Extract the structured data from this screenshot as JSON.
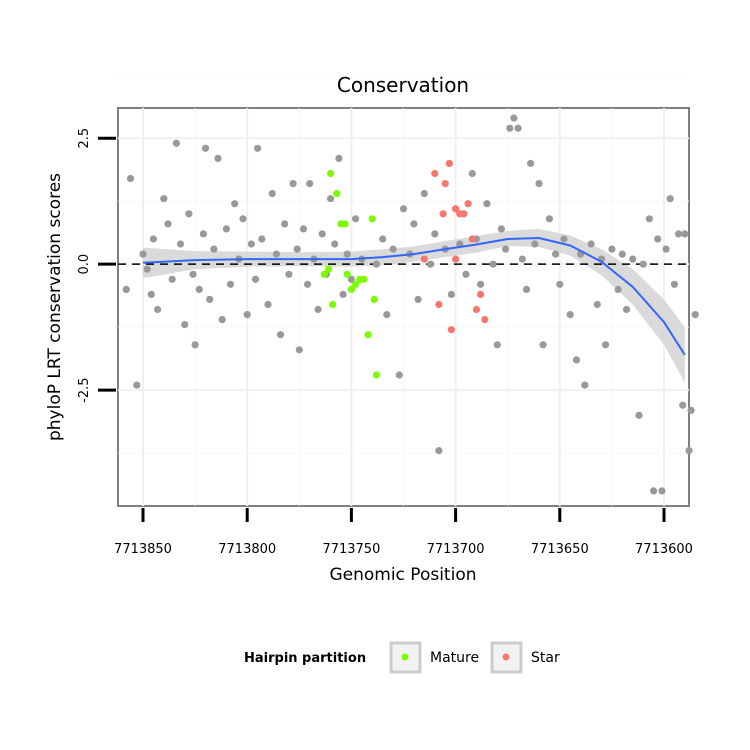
{
  "chart_data": {
    "type": "scatter",
    "title": "Conservation",
    "xlabel": "Genomic Position",
    "ylabel": "phyloP LRT conservation scores",
    "x_reversed": true,
    "xlim": [
      7713862,
      7713588
    ],
    "ylim": [
      -4.8,
      3.1
    ],
    "x_ticks": [
      7713850,
      7713800,
      7713750,
      7713700,
      7713650,
      7713600
    ],
    "x_tick_labels": [
      "7713850",
      "7713800",
      "7713750",
      "7713700",
      "7713650",
      "7713600"
    ],
    "y_ticks": [
      2.5,
      0.0,
      -2.5
    ],
    "y_tick_labels": [
      "2.5",
      "0.0",
      "-2.5"
    ],
    "reference_line_y": 0,
    "legend": {
      "title": "Hairpin partition",
      "placement": "bottom",
      "entries": [
        {
          "label": "Mature",
          "color": "#7cfc00"
        },
        {
          "label": "Star",
          "color": "#f8766d"
        }
      ]
    },
    "colors": {
      "other": "#999999",
      "Mature": "#7cfc00",
      "Star": "#f8766d",
      "smooth": "#3366ff",
      "band": "#d3d3d3"
    },
    "smooth": {
      "x": [
        7713850,
        7713825,
        7713800,
        7713775,
        7713750,
        7713735,
        7713720,
        7713705,
        7713690,
        7713675,
        7713660,
        7713645,
        7713630,
        7713615,
        7713600,
        7713590
      ],
      "y": [
        0.03,
        0.08,
        0.1,
        0.1,
        0.1,
        0.14,
        0.2,
        0.3,
        0.39,
        0.5,
        0.52,
        0.37,
        0.05,
        -0.45,
        -1.15,
        -1.8
      ],
      "lower": [
        -0.28,
        -0.1,
        -0.05,
        -0.04,
        -0.05,
        -0.02,
        0.05,
        0.14,
        0.23,
        0.36,
        0.34,
        0.17,
        -0.22,
        -0.8,
        -1.6,
        -2.35
      ],
      "upper": [
        0.33,
        0.26,
        0.25,
        0.24,
        0.25,
        0.3,
        0.35,
        0.46,
        0.56,
        0.66,
        0.7,
        0.57,
        0.3,
        -0.1,
        -0.7,
        -1.25
      ]
    },
    "series": [
      {
        "name": "Other",
        "color": "#999999",
        "points": [
          [
            7713858,
            -0.5
          ],
          [
            7713856,
            1.7
          ],
          [
            7713853,
            -2.4
          ],
          [
            7713850,
            0.2
          ],
          [
            7713848,
            -0.1
          ],
          [
            7713846,
            -0.6
          ],
          [
            7713845,
            0.5
          ],
          [
            7713843,
            -0.9
          ],
          [
            7713840,
            1.3
          ],
          [
            7713838,
            0.8
          ],
          [
            7713836,
            -0.3
          ],
          [
            7713834,
            2.4
          ],
          [
            7713832,
            0.4
          ],
          [
            7713830,
            -1.2
          ],
          [
            7713828,
            1.0
          ],
          [
            7713826,
            -0.2
          ],
          [
            7713825,
            -1.6
          ],
          [
            7713823,
            -0.5
          ],
          [
            7713821,
            0.6
          ],
          [
            7713820,
            2.3
          ],
          [
            7713818,
            -0.7
          ],
          [
            7713816,
            0.3
          ],
          [
            7713814,
            2.1
          ],
          [
            7713812,
            -1.1
          ],
          [
            7713810,
            0.7
          ],
          [
            7713808,
            -0.4
          ],
          [
            7713806,
            1.2
          ],
          [
            7713804,
            0.1
          ],
          [
            7713802,
            0.9
          ],
          [
            7713800,
            -1.0
          ],
          [
            7713798,
            0.4
          ],
          [
            7713796,
            -0.3
          ],
          [
            7713795,
            2.3
          ],
          [
            7713793,
            0.5
          ],
          [
            7713790,
            -0.8
          ],
          [
            7713788,
            1.4
          ],
          [
            7713786,
            0.2
          ],
          [
            7713784,
            -1.4
          ],
          [
            7713782,
            0.8
          ],
          [
            7713780,
            -0.2
          ],
          [
            7713778,
            1.6
          ],
          [
            7713776,
            0.3
          ],
          [
            7713775,
            -1.7
          ],
          [
            7713773,
            0.7
          ],
          [
            7713771,
            -0.4
          ],
          [
            7713770,
            1.6
          ],
          [
            7713768,
            0.1
          ],
          [
            7713766,
            -0.9
          ],
          [
            7713764,
            0.6
          ],
          [
            7713762,
            -0.2
          ],
          [
            7713760,
            1.3
          ],
          [
            7713758,
            0.4
          ],
          [
            7713756,
            2.1
          ],
          [
            7713754,
            -0.6
          ],
          [
            7713752,
            0.2
          ],
          [
            7713750,
            -0.3
          ],
          [
            7713748,
            0.9
          ],
          [
            7713745,
            0.1
          ],
          [
            7713738,
            0.0
          ],
          [
            7713735,
            0.5
          ],
          [
            7713733,
            -1.0
          ],
          [
            7713730,
            0.3
          ],
          [
            7713727,
            -2.2
          ],
          [
            7713725,
            1.1
          ],
          [
            7713722,
            0.2
          ],
          [
            7713720,
            0.8
          ],
          [
            7713718,
            -0.7
          ],
          [
            7713715,
            1.4
          ],
          [
            7713712,
            0.0
          ],
          [
            7713710,
            0.6
          ],
          [
            7713708,
            -3.7
          ],
          [
            7713705,
            0.3
          ],
          [
            7713702,
            -0.6
          ],
          [
            7713700,
            1.1
          ],
          [
            7713698,
            0.4
          ],
          [
            7713695,
            -0.2
          ],
          [
            7713692,
            1.8
          ],
          [
            7713690,
            0.5
          ],
          [
            7713688,
            -0.4
          ],
          [
            7713685,
            1.2
          ],
          [
            7713682,
            0.0
          ],
          [
            7713680,
            -1.6
          ],
          [
            7713678,
            0.7
          ],
          [
            7713676,
            0.3
          ],
          [
            7713674,
            2.7
          ],
          [
            7713672,
            2.9
          ],
          [
            7713670,
            2.7
          ],
          [
            7713668,
            0.1
          ],
          [
            7713666,
            -0.5
          ],
          [
            7713664,
            2.0
          ],
          [
            7713662,
            0.4
          ],
          [
            7713660,
            1.6
          ],
          [
            7713658,
            -1.6
          ],
          [
            7713655,
            0.9
          ],
          [
            7713652,
            0.2
          ],
          [
            7713650,
            -0.4
          ],
          [
            7713648,
            0.5
          ],
          [
            7713645,
            -1.0
          ],
          [
            7713642,
            -1.9
          ],
          [
            7713640,
            0.2
          ],
          [
            7713638,
            -2.4
          ],
          [
            7713635,
            0.4
          ],
          [
            7713632,
            -0.8
          ],
          [
            7713630,
            0.1
          ],
          [
            7713628,
            -1.6
          ],
          [
            7713625,
            0.3
          ],
          [
            7713622,
            -0.5
          ],
          [
            7713620,
            0.2
          ],
          [
            7713618,
            -0.9
          ],
          [
            7713615,
            0.1
          ],
          [
            7713612,
            -3.0
          ],
          [
            7713610,
            0.0
          ],
          [
            7713607,
            0.9
          ],
          [
            7713605,
            -4.5
          ],
          [
            7713603,
            0.5
          ],
          [
            7713601,
            -4.5
          ],
          [
            7713599,
            0.3
          ],
          [
            7713597,
            1.3
          ],
          [
            7713595,
            -0.4
          ],
          [
            7713593,
            0.6
          ],
          [
            7713591,
            -2.8
          ],
          [
            7713590,
            0.6
          ],
          [
            7713588,
            -3.7
          ],
          [
            7713587,
            -2.9
          ],
          [
            7713585,
            -1.0
          ]
        ]
      },
      {
        "name": "Mature",
        "color": "#7cfc00",
        "points": [
          [
            7713760,
            1.8
          ],
          [
            7713757,
            1.4
          ],
          [
            7713755,
            0.8
          ],
          [
            7713753,
            0.8
          ],
          [
            7713752,
            -0.2
          ],
          [
            7713750,
            -0.5
          ],
          [
            7713748,
            -0.4
          ],
          [
            7713746,
            -0.3
          ],
          [
            7713744,
            -0.3
          ],
          [
            7713742,
            -1.4
          ],
          [
            7713740,
            0.9
          ],
          [
            7713739,
            -0.7
          ],
          [
            7713738,
            -2.2
          ],
          [
            7713761,
            -0.1
          ],
          [
            7713759,
            -0.8
          ],
          [
            7713763,
            -0.2
          ]
        ]
      },
      {
        "name": "Star",
        "color": "#f8766d",
        "points": [
          [
            7713710,
            1.8
          ],
          [
            7713705,
            1.6
          ],
          [
            7713703,
            2.0
          ],
          [
            7713700,
            1.1
          ],
          [
            7713698,
            1.0
          ],
          [
            7713696,
            1.0
          ],
          [
            7713694,
            1.2
          ],
          [
            7713692,
            0.5
          ],
          [
            7713690,
            -0.9
          ],
          [
            7713688,
            -0.6
          ],
          [
            7713686,
            -1.1
          ],
          [
            7713708,
            -0.8
          ],
          [
            7713706,
            1.0
          ],
          [
            7713700,
            0.1
          ],
          [
            7713715,
            0.1
          ],
          [
            7713702,
            -1.3
          ]
        ]
      }
    ]
  }
}
